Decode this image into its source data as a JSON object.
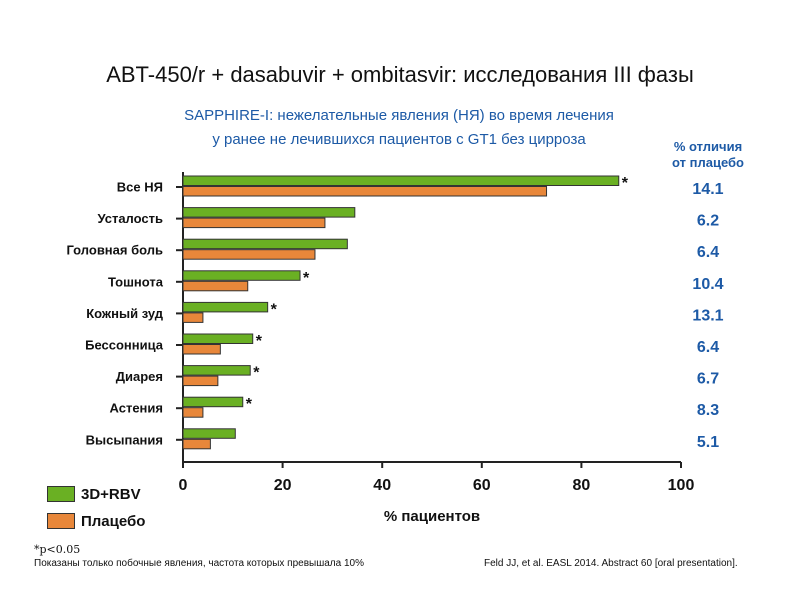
{
  "title": "ABT-450/r + dasabuvir + ombitasvir: исследования III фазы",
  "subtitle_line1": "SAPPHIRE-I: нежелательные явления (НЯ) во время лечения",
  "subtitle_line2": "у ранее не лечившихся пациентов с GT1 без цирроза",
  "diff_header_line1": "% отличия",
  "diff_header_line2": "от плацебо",
  "chart_data": {
    "type": "bar",
    "orientation": "horizontal",
    "categories": [
      "Все НЯ",
      "Усталость",
      "Головная боль",
      "Тошнота",
      "Кожный зуд",
      "Бессонница",
      "Диарея",
      "Астения",
      "Высыпания"
    ],
    "series": [
      {
        "name": "3D+RBV",
        "color": "#6ab023",
        "values": [
          87.5,
          34.5,
          33,
          23.5,
          17,
          14,
          13.5,
          12,
          10.5
        ]
      },
      {
        "name": "Плацебо",
        "color": "#e8873a",
        "values": [
          73,
          28.5,
          26.5,
          13,
          4,
          7.5,
          7,
          4,
          5.5
        ]
      }
    ],
    "significance": [
      "*",
      "",
      "",
      "*",
      "*",
      "*",
      "*",
      "*",
      ""
    ],
    "diff_values": [
      "14.1",
      "6.2",
      "6.4",
      "10.4",
      "13.1",
      "6.4",
      "6.7",
      "8.3",
      "5.1"
    ],
    "xlabel": "% пациентов",
    "xlim": [
      0,
      100
    ],
    "xticks": [
      0,
      20,
      40,
      60,
      80,
      100
    ],
    "grid": false,
    "legend_position": "bottom-left"
  },
  "footnote_p": "*p<0.05",
  "footnote_ae": "Показаны только побочные явления, частота которых превышала 10%",
  "reference": "Feld JJ, et al. EASL 2014. Abstract 60 [oral presentation].",
  "colors": {
    "green": "#6ab023",
    "orange": "#e8873a",
    "blue": "#1d5aa6"
  }
}
